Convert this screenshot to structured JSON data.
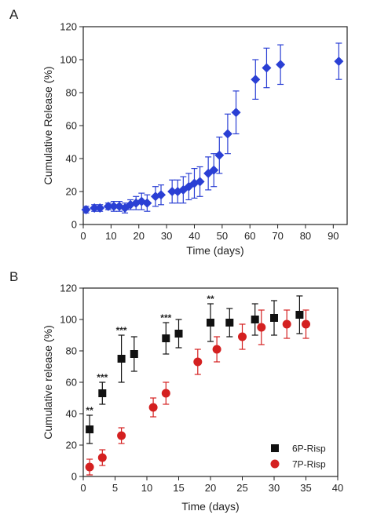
{
  "chart_data": [
    {
      "panel": "A",
      "type": "scatter",
      "xlabel": "Time (days)",
      "ylabel": "Cumulative Release (%)",
      "xlim": [
        0,
        95
      ],
      "ylim": [
        0,
        120
      ],
      "xticks": [
        0,
        10,
        20,
        30,
        40,
        50,
        60,
        70,
        80,
        90
      ],
      "yticks": [
        0,
        20,
        40,
        60,
        80,
        100,
        120
      ],
      "grid": false,
      "series": [
        {
          "color": "#2a3fd4",
          "marker": "diamond",
          "x": [
            1,
            4,
            6,
            9,
            11,
            13,
            15,
            17,
            19,
            21,
            23,
            26,
            28,
            32,
            34,
            36,
            38,
            40,
            42,
            45,
            47,
            49,
            52,
            55,
            62,
            66,
            71,
            92
          ],
          "y": [
            9,
            10,
            10,
            11,
            11,
            11,
            10,
            12,
            13,
            14,
            13,
            17,
            18,
            20,
            20,
            21,
            23,
            25,
            26,
            31,
            33,
            42,
            55,
            68,
            88,
            95,
            97,
            99
          ],
          "err": [
            2,
            2,
            2,
            2,
            3,
            3,
            3,
            3,
            4,
            5,
            5,
            6,
            6,
            7,
            7,
            8,
            8,
            9,
            9,
            10,
            10,
            11,
            12,
            13,
            12,
            12,
            12,
            11
          ]
        }
      ]
    },
    {
      "panel": "B",
      "type": "scatter",
      "xlabel": "Time (days)",
      "ylabel": "Cumulative release (%)",
      "xlim": [
        0,
        40
      ],
      "ylim": [
        0,
        120
      ],
      "xticks": [
        0,
        5,
        10,
        15,
        20,
        25,
        30,
        35,
        40
      ],
      "yticks": [
        0,
        20,
        40,
        60,
        80,
        100,
        120
      ],
      "grid": false,
      "legend_position": "bottom-right",
      "series": [
        {
          "name": "6P-Risp",
          "color": "#111111",
          "marker": "square",
          "x": [
            1,
            3,
            6,
            8,
            13,
            15,
            20,
            23,
            27,
            30,
            34
          ],
          "y": [
            30,
            53,
            75,
            78,
            88,
            91,
            98,
            98,
            100,
            101,
            103
          ],
          "err": [
            9,
            7,
            15,
            11,
            10,
            9,
            12,
            9,
            10,
            11,
            12
          ]
        },
        {
          "name": "7P-Risp",
          "color": "#d42020",
          "marker": "circle",
          "x": [
            1,
            3,
            6,
            11,
            13,
            18,
            21,
            25,
            28,
            32,
            35
          ],
          "y": [
            6,
            12,
            26,
            44,
            53,
            73,
            81,
            89,
            95,
            97,
            97
          ],
          "err": [
            5,
            5,
            5,
            6,
            7,
            8,
            8,
            8,
            11,
            9,
            9
          ]
        }
      ],
      "annotations": [
        {
          "text": "**",
          "x": 1,
          "y": 40
        },
        {
          "text": "***",
          "x": 3,
          "y": 61
        },
        {
          "text": "***",
          "x": 6,
          "y": 91
        },
        {
          "text": "***",
          "x": 13,
          "y": 99
        },
        {
          "text": "**",
          "x": 20,
          "y": 111
        }
      ]
    }
  ]
}
